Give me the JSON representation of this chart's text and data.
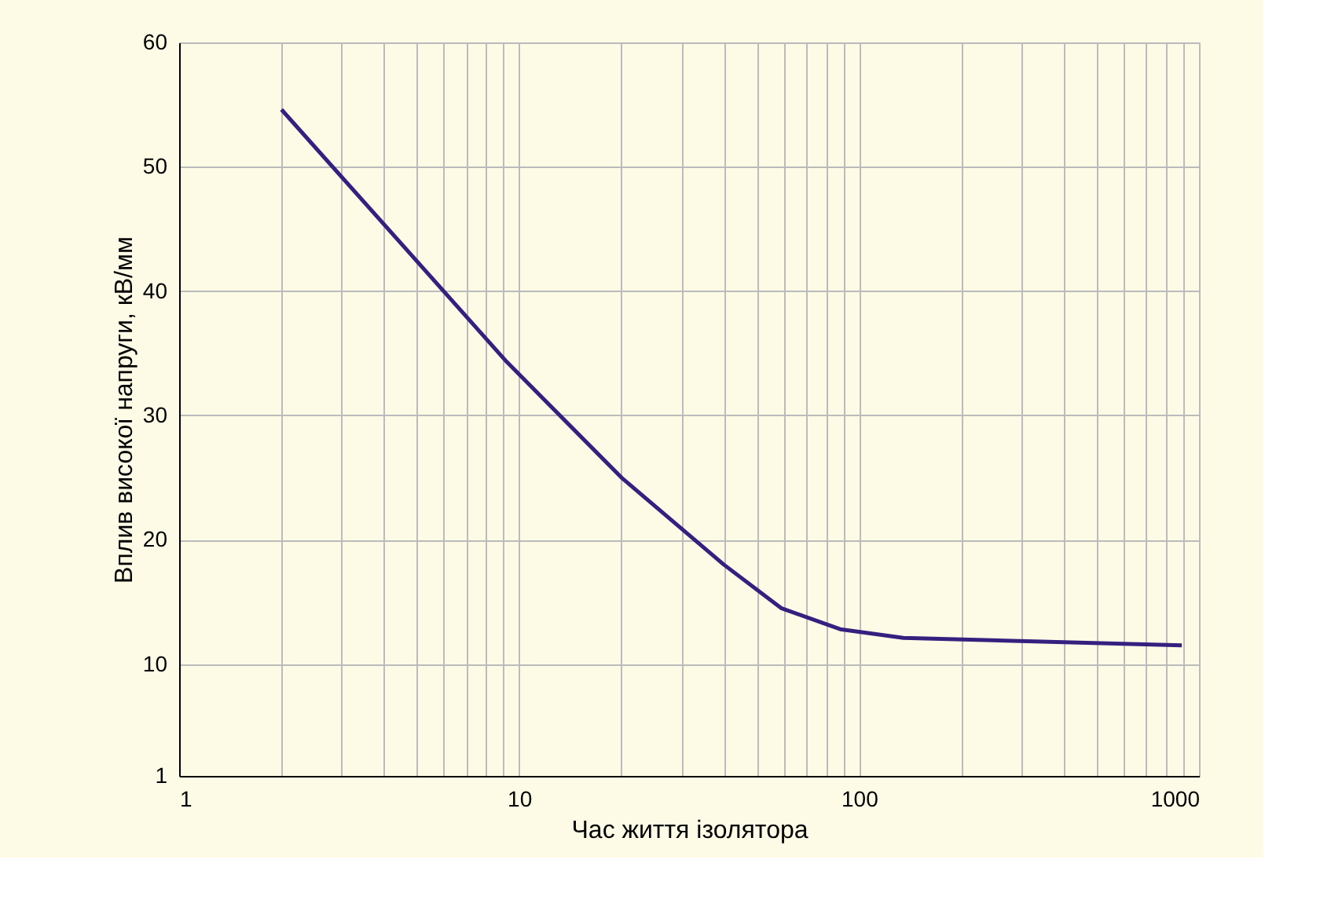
{
  "chart_data": {
    "type": "line",
    "xlabel": "Час життя ізолятора",
    "ylabel": "Вплив високої напруги, кВ/мм",
    "x": [
      2,
      9.2,
      20,
      40,
      59,
      88,
      135,
      890
    ],
    "series": [
      {
        "color": "#35207f",
        "values": [
          54.6,
          34.3,
          25,
          18,
          14.5,
          12.8,
          12.1,
          11.5
        ]
      }
    ],
    "log": "x",
    "xlim": [
      1,
      1000
    ],
    "xticks": [
      1,
      {
        "value": 2,
        "label": null
      },
      {
        "value": 3,
        "label": null
      },
      {
        "value": 4,
        "label": null
      },
      {
        "value": 5,
        "label": null
      },
      {
        "value": 6,
        "label": null
      },
      {
        "value": 7,
        "label": null
      },
      {
        "value": 8,
        "label": null
      },
      {
        "value": 9,
        "label": null
      },
      10,
      {
        "value": 20,
        "label": null
      },
      {
        "value": 30,
        "label": null
      },
      {
        "value": 40,
        "label": null
      },
      {
        "value": 50,
        "label": null
      },
      {
        "value": 60,
        "label": null
      },
      {
        "value": 70,
        "label": null
      },
      {
        "value": 80,
        "label": null
      },
      {
        "value": 90,
        "label": null
      },
      100,
      {
        "value": 200,
        "label": null
      },
      {
        "value": 300,
        "label": null
      },
      {
        "value": 400,
        "label": null
      },
      {
        "value": 500,
        "label": null
      },
      {
        "value": 600,
        "label": null
      },
      {
        "value": 700,
        "label": null
      },
      {
        "value": 800,
        "label": null
      },
      {
        "value": 900,
        "label": null
      },
      1000
    ],
    "ylim": [
      1,
      60
    ],
    "yticks": [
      1,
      10,
      20,
      30,
      40,
      50,
      60
    ],
    "grid": true,
    "marker": "none",
    "line_style": "solid"
  }
}
